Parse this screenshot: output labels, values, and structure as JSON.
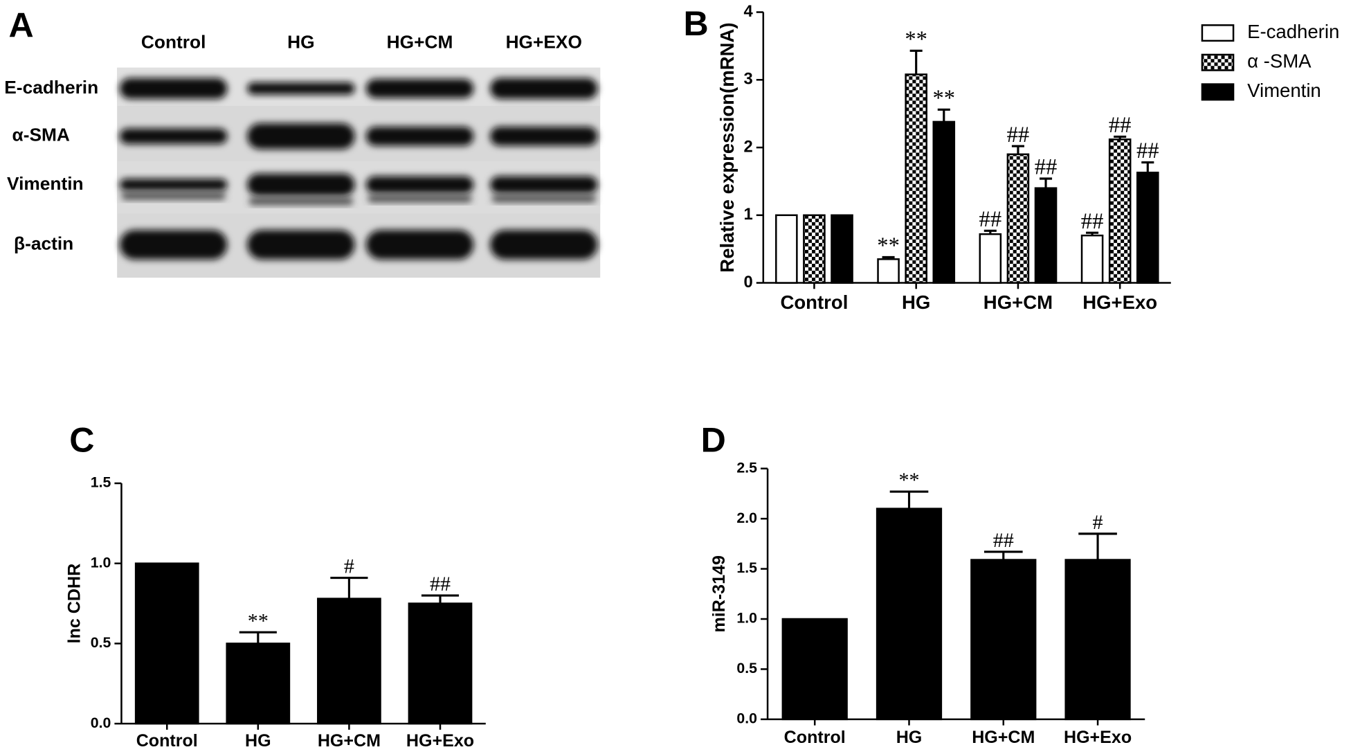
{
  "blot": {
    "panel": "A",
    "columns": [
      "Control",
      "HG",
      "HG+CM",
      "HG+EXO"
    ],
    "rows": [
      "E-cadherin",
      "α-SMA",
      "Vimentin",
      "β-actin"
    ]
  },
  "chart_data": [
    {
      "type": "bar",
      "panel": "B",
      "ylabel": "Relative expression(mRNA)",
      "categories": [
        "Control",
        "HG",
        "HG+CM",
        "HG+Exo"
      ],
      "ylim": [
        0,
        4
      ],
      "yticks": [
        0,
        1,
        2,
        3,
        4
      ],
      "legend": "top-right",
      "series": [
        {
          "name": "E-cadherin",
          "color": "#ffffff",
          "values": [
            1,
            0.35,
            0.72,
            0.7
          ],
          "errors": [
            0,
            0.03,
            0.05,
            0.04
          ],
          "annotations": [
            null,
            "**",
            "##",
            "##"
          ]
        },
        {
          "name": "α -SMA",
          "color": "#000000",
          "pattern": "checker",
          "values": [
            1,
            3.08,
            1.9,
            2.12
          ],
          "errors": [
            0,
            0.35,
            0.12,
            0.04
          ],
          "annotations": [
            null,
            "**",
            "##",
            "##"
          ]
        },
        {
          "name": "Vimentin",
          "color": "#000000",
          "values": [
            1,
            2.38,
            1.4,
            1.63
          ],
          "errors": [
            0,
            0.18,
            0.14,
            0.15
          ],
          "annotations": [
            null,
            "**",
            "##",
            "##"
          ]
        }
      ]
    },
    {
      "type": "bar",
      "panel": "C",
      "ylabel": "lnc CDHR",
      "categories": [
        "Control",
        "HG",
        "HG+CM",
        "HG+Exo"
      ],
      "ylim": [
        0,
        1.5
      ],
      "yticks": [
        {
          "value": 0,
          "label": "0.0"
        },
        0.5,
        {
          "value": 1,
          "label": "1.0"
        },
        1.5
      ],
      "series": [
        {
          "color": "#000000",
          "values": [
            1,
            0.5,
            0.78,
            0.75
          ],
          "errors": [
            0,
            0.07,
            0.13,
            0.05
          ],
          "annotations": [
            null,
            "**",
            "#",
            "##"
          ]
        }
      ]
    },
    {
      "type": "bar",
      "panel": "D",
      "ylabel": "miR-3149",
      "categories": [
        "Control",
        "HG",
        "HG+CM",
        "HG+Exo"
      ],
      "ylim": [
        0,
        2.5
      ],
      "yticks": [
        {
          "value": 0,
          "label": "0.0"
        },
        0.5,
        {
          "value": 1,
          "label": "1.0"
        },
        1.5,
        {
          "value": 2,
          "label": "2.0"
        },
        2.5
      ],
      "series": [
        {
          "color": "#000000",
          "values": [
            1,
            2.1,
            1.59,
            1.59
          ],
          "errors": [
            0,
            0.17,
            0.08,
            0.26
          ],
          "annotations": [
            null,
            "**",
            "##",
            "#"
          ]
        }
      ]
    }
  ]
}
